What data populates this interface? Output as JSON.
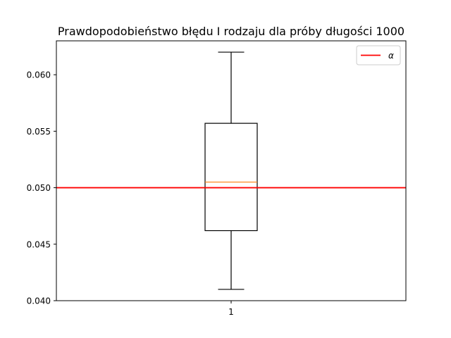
{
  "chart_data": {
    "type": "box",
    "title": "Prawdopodobieństwo błędu I rodzaju dla próby długości 1000",
    "xlabel": "",
    "ylabel": "",
    "categories": [
      "1"
    ],
    "boxes": [
      {
        "name": "1",
        "whisker_low": 0.041,
        "q1": 0.0462,
        "median": 0.0505,
        "q3": 0.0557,
        "whisker_high": 0.062
      }
    ],
    "reference_lines": [
      {
        "name": "α",
        "y": 0.05,
        "color": "#ff0000"
      }
    ],
    "ylim": [
      0.04,
      0.063
    ],
    "yticks": [
      0.04,
      0.045,
      0.05,
      0.055,
      0.06
    ],
    "ytick_labels": [
      "0.040",
      "0.045",
      "0.050",
      "0.055",
      "0.060"
    ],
    "grid": false,
    "legend": {
      "position": "top-right",
      "entries": [
        "α"
      ]
    },
    "colors": {
      "box": "#000000",
      "median": "#ff7f0e",
      "reference": "#ff0000"
    }
  }
}
